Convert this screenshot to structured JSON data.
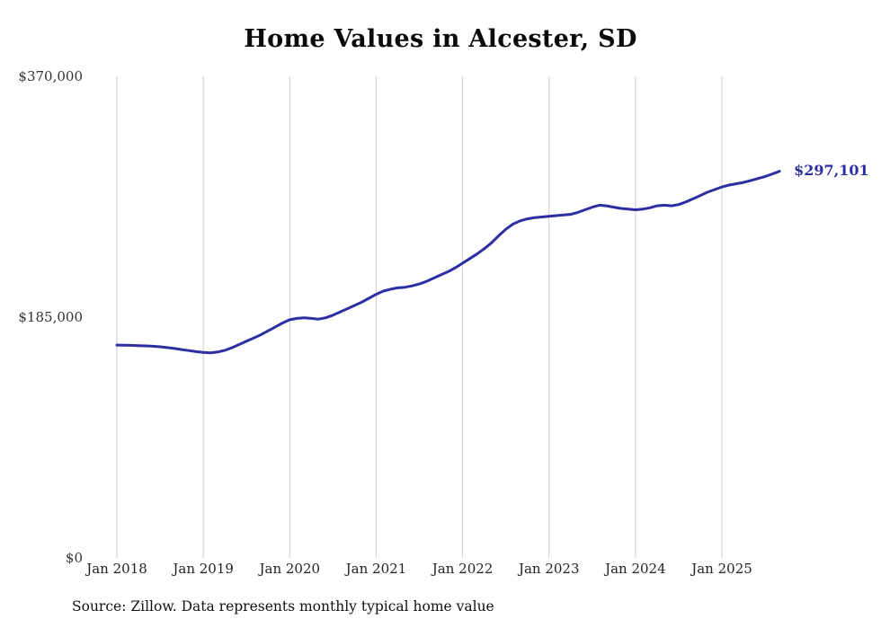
{
  "chart": {
    "title": "Home Values in Alcester, SD",
    "end_label": "$297,101",
    "source": "Source: Zillow. Data represents monthly typical home value"
  },
  "chart_data": {
    "type": "line",
    "title": "Home Values in Alcester, SD",
    "series_name": "Monthly typical home value",
    "x_start": "2018-01",
    "x_interval": "month",
    "x_tick_labels": [
      "Jan 2018",
      "Jan 2019",
      "Jan 2020",
      "Jan 2021",
      "Jan 2022",
      "Jan 2023",
      "Jan 2024",
      "Jan 2025"
    ],
    "y_tick_labels": [
      "$370,000",
      "$185,000",
      "$0"
    ],
    "y_ticks": [
      370000,
      185000,
      0
    ],
    "ylim": [
      0,
      370000
    ],
    "grid": "vertical-only",
    "legend": "none",
    "line_color": "#2e2ea3",
    "grid_color": "#cccccc",
    "final_value": 297101,
    "final_label": "$297,101",
    "values": [
      163500,
      163400,
      163300,
      163100,
      162900,
      162600,
      162200,
      161600,
      160900,
      160100,
      159300,
      158500,
      157900,
      157600,
      158200,
      159500,
      161500,
      164000,
      166500,
      169000,
      171500,
      174500,
      177500,
      180500,
      183000,
      184000,
      184500,
      184000,
      183500,
      184500,
      186500,
      189000,
      191500,
      194000,
      196500,
      199500,
      202500,
      205000,
      206500,
      207500,
      208000,
      209000,
      210500,
      212500,
      215000,
      217500,
      220000,
      223000,
      226500,
      230000,
      233500,
      237500,
      242000,
      247500,
      252500,
      256500,
      259000,
      260500,
      261500,
      262000,
      262500,
      263000,
      263500,
      264000,
      265500,
      267500,
      269500,
      271000,
      270500,
      269500,
      268500,
      268000,
      267500,
      268000,
      269000,
      270500,
      271000,
      270500,
      271500,
      273500,
      276000,
      278500,
      281000,
      283000,
      285000,
      286500,
      287500,
      288500,
      290000,
      291500,
      293000,
      295000,
      297101
    ]
  }
}
